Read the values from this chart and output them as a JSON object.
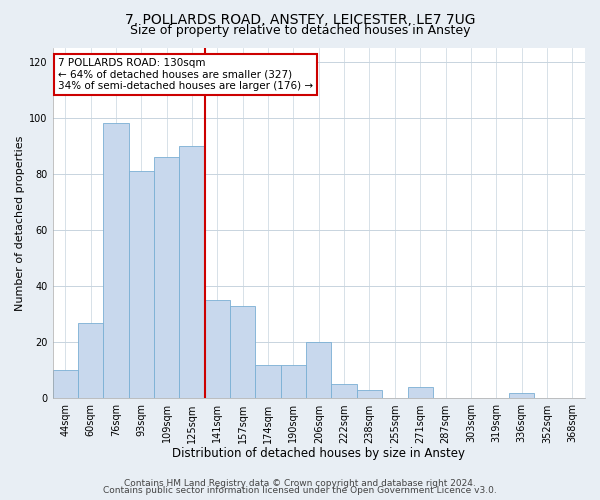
{
  "title": "7, POLLARDS ROAD, ANSTEY, LEICESTER, LE7 7UG",
  "subtitle": "Size of property relative to detached houses in Anstey",
  "xlabel": "Distribution of detached houses by size in Anstey",
  "ylabel": "Number of detached properties",
  "bar_color": "#c8d8ed",
  "bar_edge_color": "#7aafd4",
  "bins": [
    "44sqm",
    "60sqm",
    "76sqm",
    "93sqm",
    "109sqm",
    "125sqm",
    "141sqm",
    "157sqm",
    "174sqm",
    "190sqm",
    "206sqm",
    "222sqm",
    "238sqm",
    "255sqm",
    "271sqm",
    "287sqm",
    "303sqm",
    "319sqm",
    "336sqm",
    "352sqm",
    "368sqm"
  ],
  "values": [
    10,
    27,
    98,
    81,
    86,
    90,
    35,
    33,
    12,
    12,
    20,
    5,
    3,
    0,
    4,
    0,
    0,
    0,
    2,
    0,
    0
  ],
  "ylim": [
    0,
    125
  ],
  "yticks": [
    0,
    20,
    40,
    60,
    80,
    100,
    120
  ],
  "vline_x": 5.5,
  "vline_color": "#cc0000",
  "annotation_text": "7 POLLARDS ROAD: 130sqm\n← 64% of detached houses are smaller (327)\n34% of semi-detached houses are larger (176) →",
  "annotation_box_color": "#ffffff",
  "annotation_box_edge_color": "#cc0000",
  "footer_line1": "Contains HM Land Registry data © Crown copyright and database right 2024.",
  "footer_line2": "Contains public sector information licensed under the Open Government Licence v3.0.",
  "background_color": "#e8eef4",
  "plot_bg_color": "#ffffff",
  "grid_color": "#c8d4de",
  "title_fontsize": 10,
  "subtitle_fontsize": 9,
  "xlabel_fontsize": 8.5,
  "ylabel_fontsize": 8,
  "tick_fontsize": 7,
  "footer_fontsize": 6.5,
  "ann_fontsize": 7.5
}
